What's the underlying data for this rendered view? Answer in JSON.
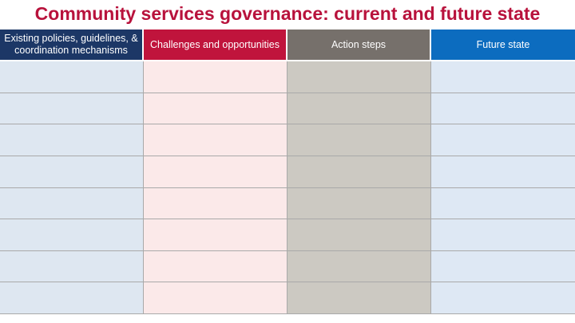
{
  "slide": {
    "title": "Community services governance: current and future state",
    "title_color": "#B8123C",
    "background": "#FFFFFF"
  },
  "table": {
    "row_count": 8,
    "grid_line_color": "#A9A9A9",
    "columns": [
      {
        "label": "Existing policies, guidelines, & coordination mechanisms",
        "header_bg": "#1C3766",
        "header_text_color": "#FFFFFF",
        "body_bg": "#DEE7F1"
      },
      {
        "label": "Challenges and opportunities",
        "header_bg": "#C0143C",
        "header_text_color": "#FFFFFF",
        "body_bg": "#FBE9E9"
      },
      {
        "label": "Action steps",
        "header_bg": "#76706B",
        "header_text_color": "#FFFFFF",
        "body_bg": "#CCC9C2"
      },
      {
        "label": "Future state",
        "header_bg": "#0C6CBF",
        "header_text_color": "#FFFFFF",
        "body_bg": "#DEE8F4"
      }
    ]
  }
}
